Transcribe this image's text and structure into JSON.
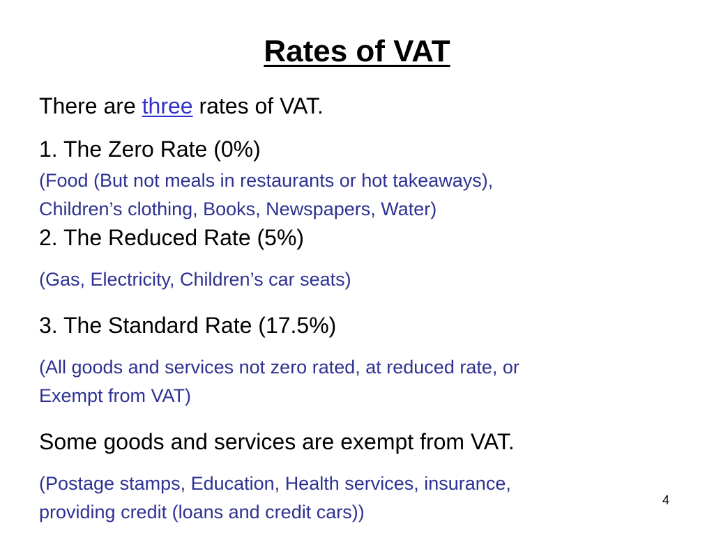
{
  "slide": {
    "title": "Rates of VAT",
    "intro": {
      "prefix": "There are ",
      "link_text": "three",
      "suffix": " rates of VAT."
    },
    "rates": [
      {
        "heading": "1. The Zero Rate (0%)",
        "examples": [
          "(Food (But not meals in restaurants or hot takeaways),",
          "Children’s clothing, Books, Newspapers, Water)"
        ]
      },
      {
        "heading": "2. The Reduced Rate (5%)",
        "examples": [
          "(Gas, Electricity, Children’s car seats)"
        ]
      },
      {
        "heading": "3. The Standard Rate (17.5%)",
        "examples": [
          "(All goods and services not zero rated, at reduced rate, or",
          "Exempt from VAT)"
        ]
      }
    ],
    "exempt": {
      "heading": "Some goods and services are exempt from VAT.",
      "examples": [
        "(Postage stamps, Education, Health services, insurance,",
        "providing credit (loans and credit cars))"
      ]
    },
    "page_number": "4"
  },
  "colors": {
    "text": "#000000",
    "note_text": "#2e3192",
    "link": "#3333cc",
    "background": "#ffffff"
  }
}
